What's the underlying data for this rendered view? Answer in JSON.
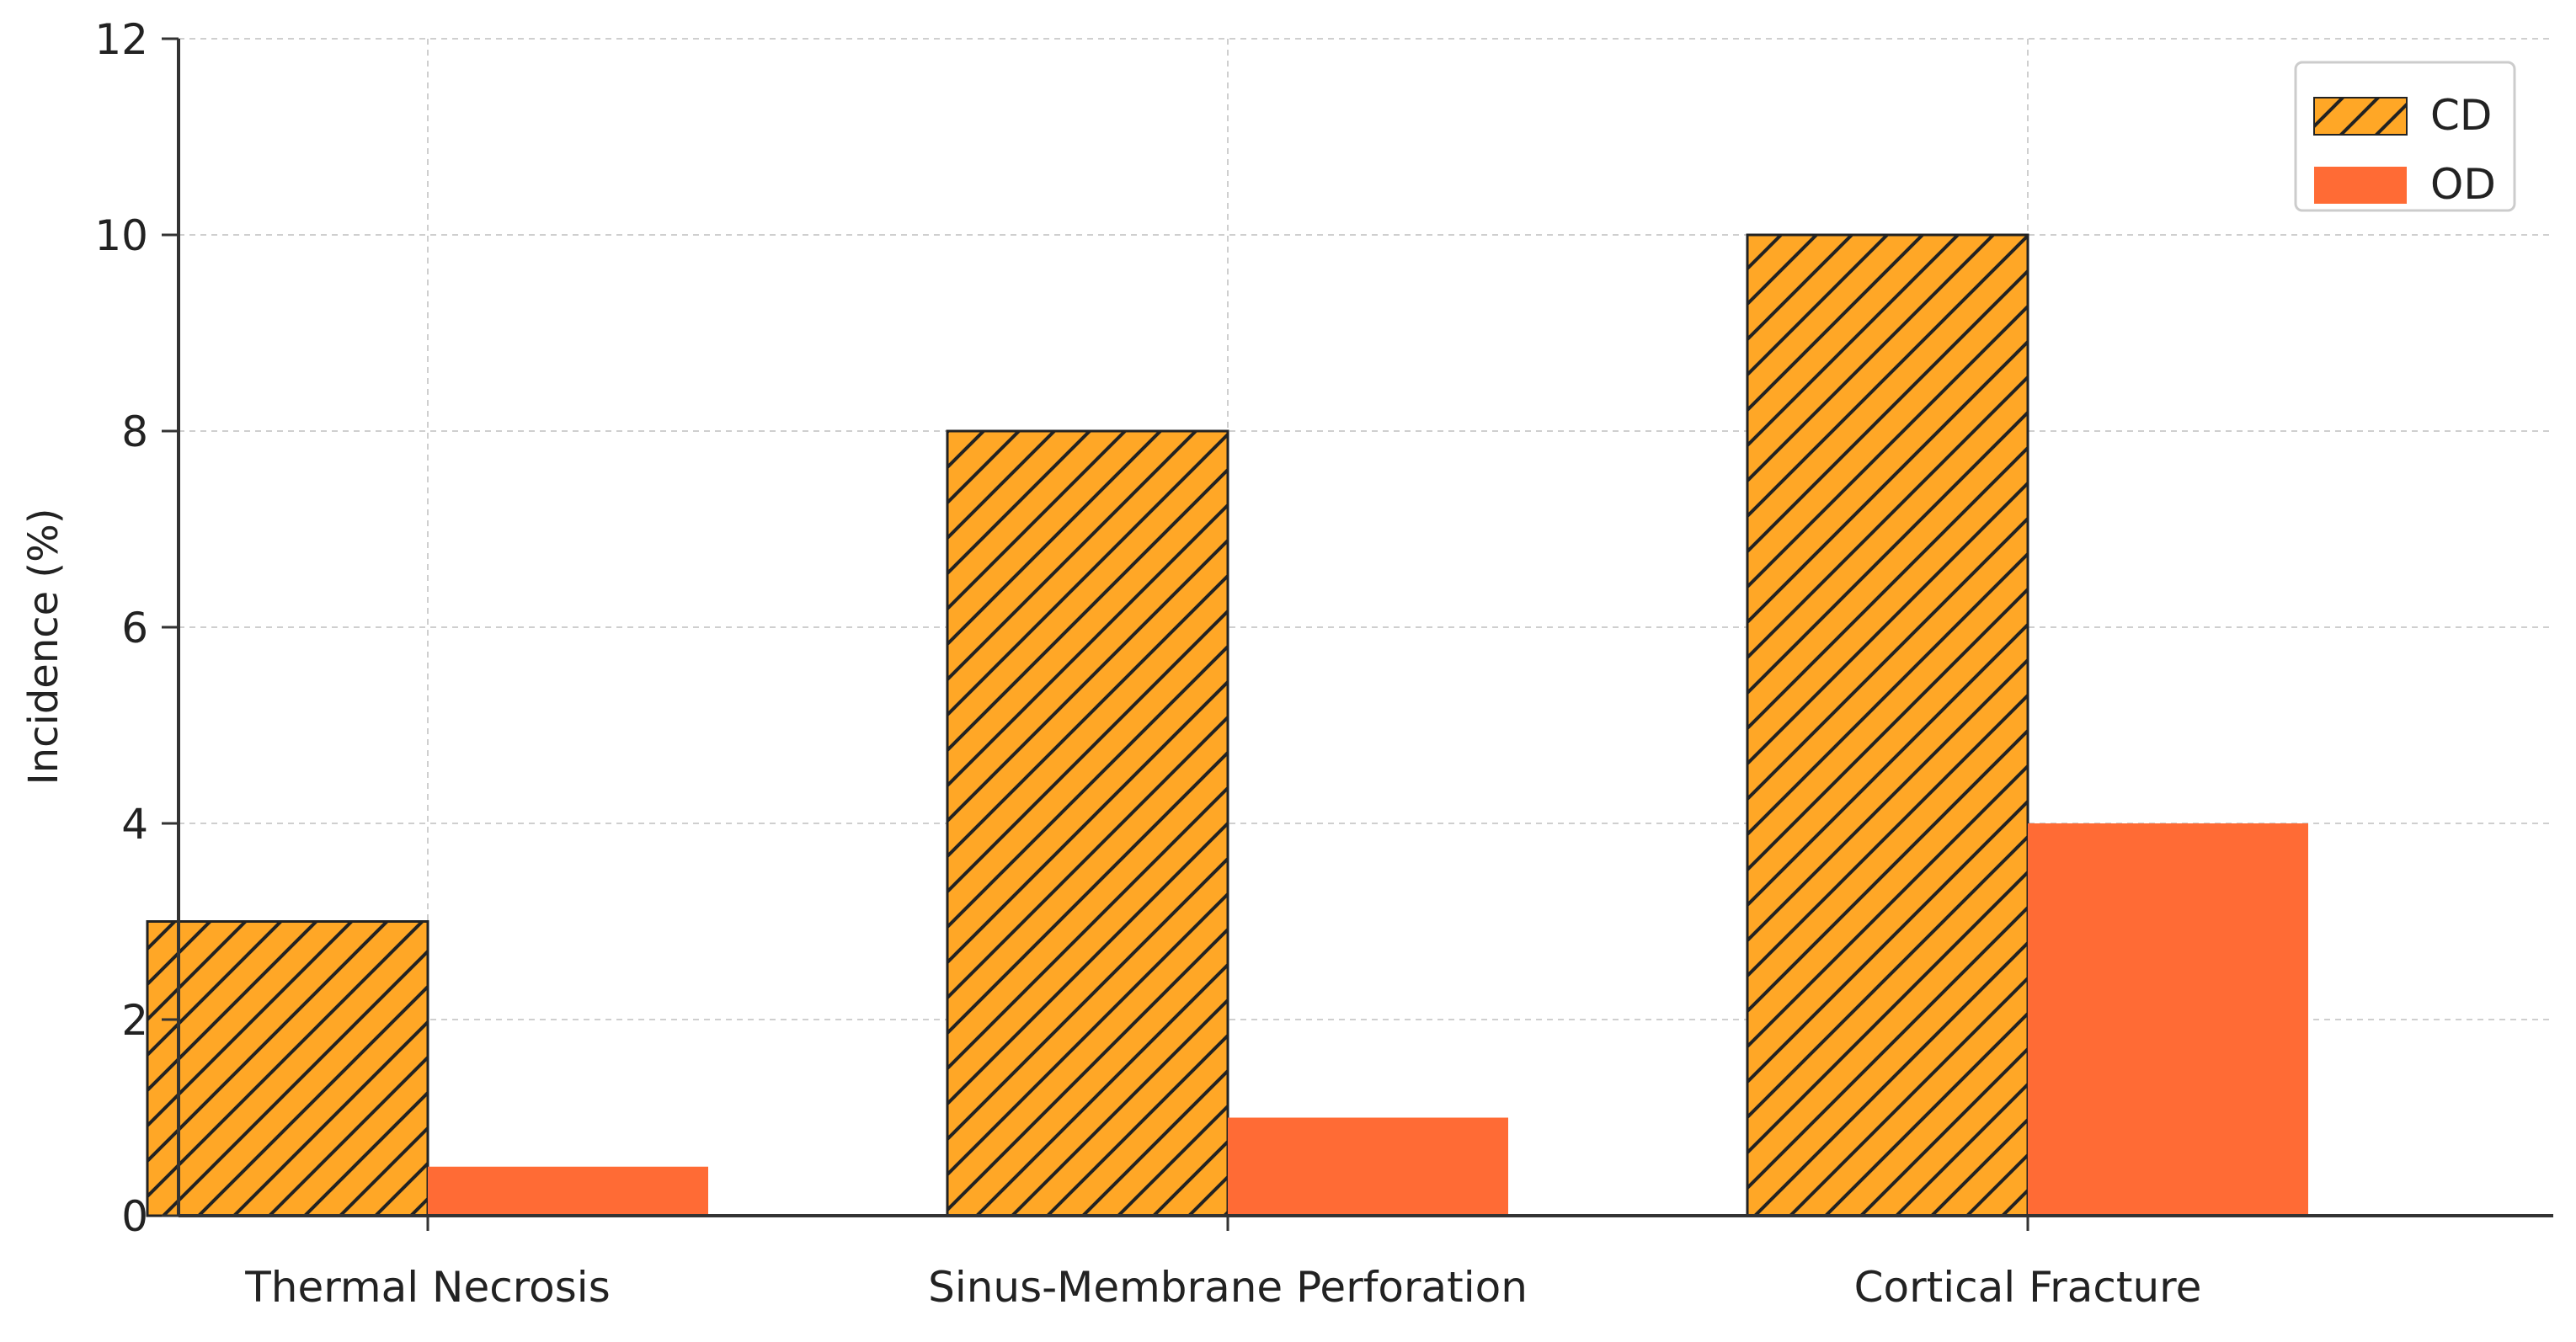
{
  "chart_data": {
    "type": "bar",
    "title": "",
    "xlabel": "",
    "ylabel": "Incidence (%)",
    "categories": [
      "Thermal Necrosis",
      "Sinus-Membrane Perforation",
      "Cortical Fracture"
    ],
    "series": [
      {
        "name": "CD",
        "values": [
          3,
          8,
          10
        ],
        "color": "#FFA726",
        "pattern": "diagonal-hatch"
      },
      {
        "name": "OD",
        "values": [
          0.5,
          1,
          4
        ],
        "color": "#FF6B35",
        "pattern": "solid"
      }
    ],
    "ylim": [
      0,
      12
    ],
    "yticks": [
      0,
      2,
      4,
      6,
      8,
      10,
      12
    ],
    "grid": true,
    "legend_position": "top-right"
  }
}
